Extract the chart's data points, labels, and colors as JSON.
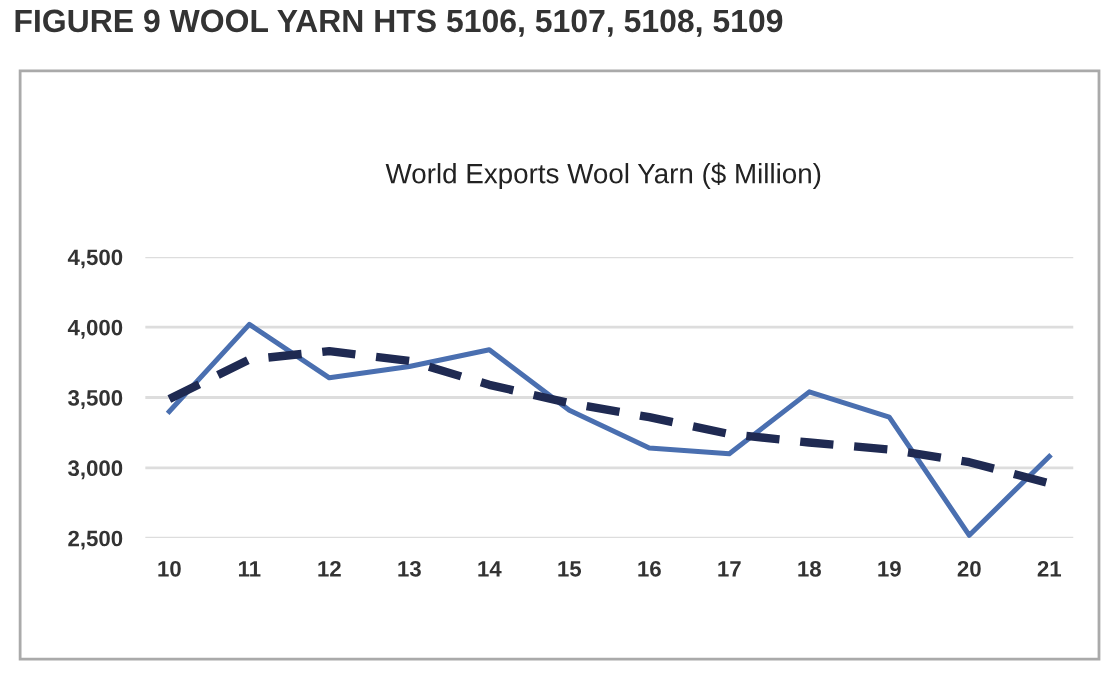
{
  "chart_data": {
    "type": "line",
    "title": "FIGURE 9 WOOL YARN HTS 5106, 5107, 5108, 5109",
    "subtitle": "World Exports Wool Yarn ($ Million)",
    "categories": [
      "10",
      "11",
      "12",
      "13",
      "14",
      "15",
      "16",
      "17",
      "18",
      "19",
      "20",
      "21"
    ],
    "series": [
      {
        "color": "#4a6fb0",
        "line_style": "solid",
        "values": [
          3400,
          4020,
          3640,
          3720,
          3840,
          3410,
          3140,
          3100,
          3540,
          3360,
          2520,
          3080
        ]
      },
      {
        "type": "line",
        "color": "#1f2a52",
        "line_style": "dashed",
        "x": [
          "10",
          "11",
          "12",
          "13",
          "14",
          "15",
          "16",
          "17",
          "18",
          "19",
          "20",
          "21"
        ],
        "values": [
          3490,
          3770,
          3830,
          3760,
          3590,
          3460,
          3360,
          3240,
          3180,
          3130,
          3040,
          2890
        ]
      }
    ],
    "ylim": [
      2500,
      4500
    ],
    "yticks": [
      {
        "value": 2500,
        "label": "2,500"
      },
      {
        "value": 3000,
        "label": "3,000"
      },
      {
        "value": 3500,
        "label": "3,500"
      },
      {
        "value": 4000,
        "label": "4,000"
      },
      {
        "value": 4500,
        "label": "4,500"
      }
    ],
    "grid": "y",
    "marker": "none"
  }
}
